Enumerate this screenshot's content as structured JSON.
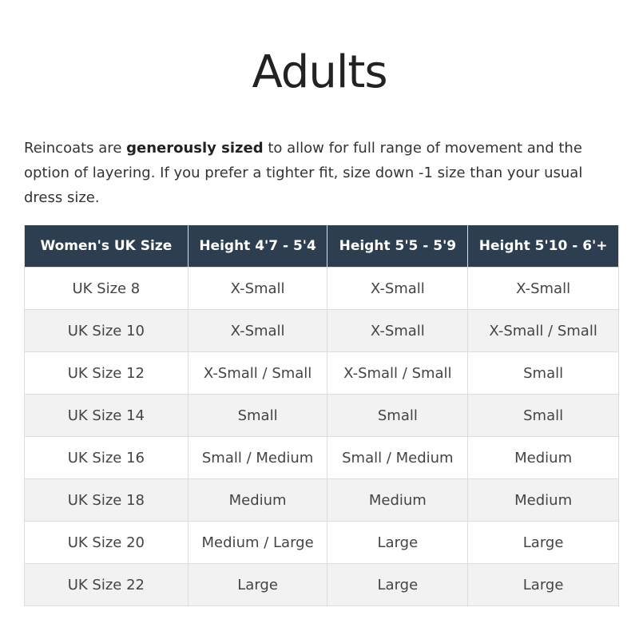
{
  "title": "Adults",
  "intro": {
    "before": "Reincoats are ",
    "bold": "generously sized",
    "after": " to allow for full range of movement and the option of layering. If you prefer a tighter fit, size down -1 size than your usual dress size."
  },
  "table": {
    "headers": [
      "Women's UK Size",
      "Height 4'7 - 5'4",
      "Height 5'5 - 5'9",
      "Height 5'10 - 6'+"
    ],
    "rows": [
      [
        "UK Size 8",
        "X-Small",
        "X-Small",
        "X-Small"
      ],
      [
        "UK Size 10",
        "X-Small",
        "X-Small",
        "X-Small / Small"
      ],
      [
        "UK Size 12",
        "X-Small / Small",
        "X-Small / Small",
        "Small"
      ],
      [
        "UK Size 14",
        "Small",
        "Small",
        "Small"
      ],
      [
        "UK Size 16",
        "Small / Medium",
        "Small / Medium",
        "Medium"
      ],
      [
        "UK Size 18",
        "Medium",
        "Medium",
        "Medium"
      ],
      [
        "UK Size 20",
        "Medium / Large",
        "Large",
        "Large"
      ],
      [
        "UK Size 22",
        "Large",
        "Large",
        "Large"
      ]
    ],
    "header_color": "#2c3e50"
  }
}
